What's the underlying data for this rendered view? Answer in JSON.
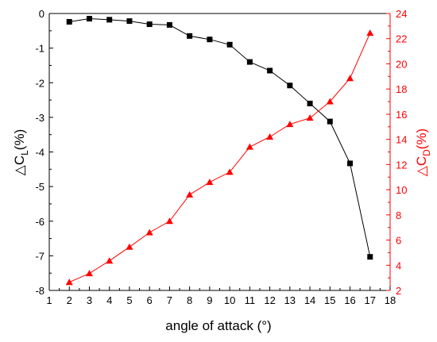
{
  "chart_data": {
    "type": "line",
    "xlabel": "angle of attack (°)",
    "ylabel_left": {
      "symbol": "△C",
      "sub": "L",
      "suffix": "(%)"
    },
    "ylabel_right": {
      "symbol": "△C",
      "sub": "D",
      "suffix": "(%)"
    },
    "xlim": [
      1,
      18
    ],
    "ylim_left": [
      -8,
      0
    ],
    "ylim_right": [
      2,
      24
    ],
    "x_ticks": [
      1,
      2,
      3,
      4,
      5,
      6,
      7,
      8,
      9,
      10,
      11,
      12,
      13,
      14,
      15,
      16,
      17,
      18
    ],
    "y_ticks_left": [
      0,
      -1,
      -2,
      -3,
      -4,
      -5,
      -6,
      -7,
      -8
    ],
    "y_ticks_right": [
      2,
      4,
      6,
      8,
      10,
      12,
      14,
      16,
      18,
      20,
      22,
      24
    ],
    "grid": false,
    "series": [
      {
        "axis": "left",
        "color": "#000000",
        "marker": "square",
        "x": [
          2,
          3,
          4,
          5,
          6,
          7,
          8,
          9,
          10,
          11,
          12,
          13,
          14,
          15,
          16,
          17
        ],
        "values": [
          -0.24,
          -0.15,
          -0.18,
          -0.22,
          -0.31,
          -0.33,
          -0.65,
          -0.75,
          -0.9,
          -1.4,
          -1.65,
          -2.08,
          -2.6,
          -3.12,
          -4.33,
          -7.03
        ]
      },
      {
        "axis": "right",
        "color": "#ff0000",
        "marker": "triangle",
        "x": [
          2,
          3,
          4,
          5,
          6,
          7,
          8,
          9,
          10,
          11,
          12,
          13,
          14,
          15,
          16,
          17
        ],
        "values": [
          2.65,
          3.35,
          4.35,
          5.45,
          6.6,
          7.5,
          9.6,
          10.6,
          11.4,
          13.4,
          14.2,
          15.2,
          15.7,
          17.0,
          18.85,
          22.45
        ]
      }
    ],
    "colors": {
      "left_axis": "#000000",
      "right_axis": "#ff0000"
    }
  }
}
